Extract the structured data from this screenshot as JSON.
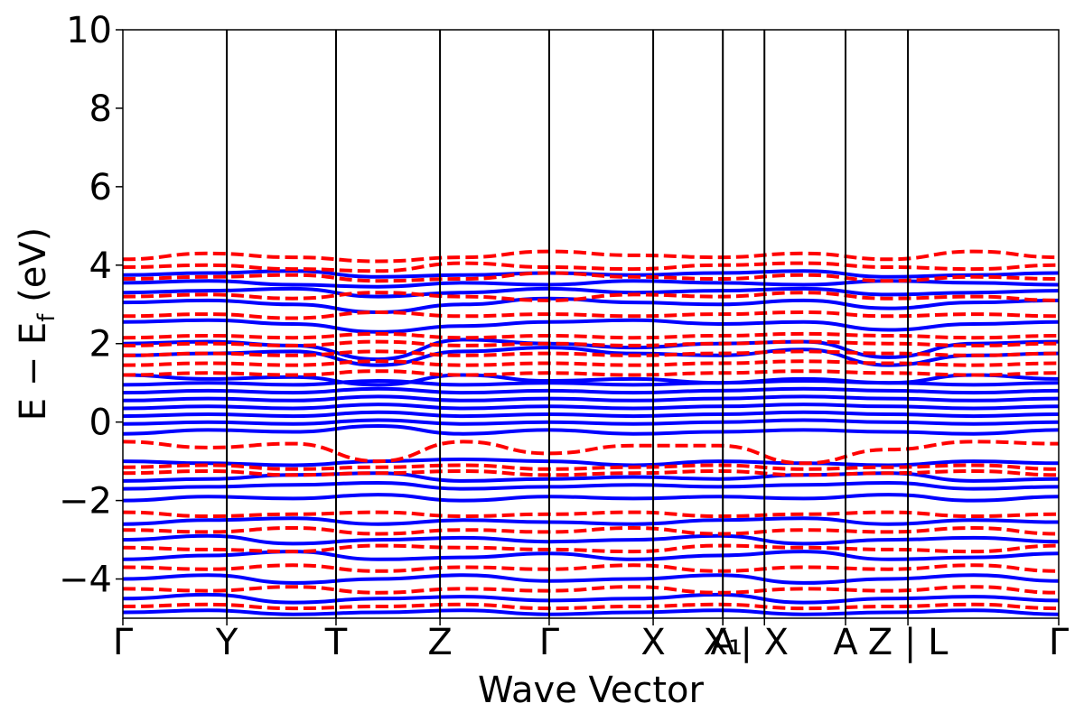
{
  "chart_data": {
    "type": "line",
    "xlabel": "Wave Vector",
    "ylabel": "E − E",
    "ylabel_sub": "f",
    "ylabel_unit": " (eV)",
    "ylim": [
      -5,
      10
    ],
    "yticks": [
      -4,
      -2,
      0,
      2,
      4,
      6,
      8,
      10
    ],
    "ytick_labels": [
      "−4",
      "−2",
      "0",
      "2",
      "4",
      "6",
      "8",
      "10"
    ],
    "xlim": [
      0,
      9.0
    ],
    "kpoints": [
      {
        "x": 0.0,
        "label": "Γ"
      },
      {
        "x": 1.0,
        "label": "Y"
      },
      {
        "x": 2.05,
        "label": "T"
      },
      {
        "x": 3.05,
        "label": "Z"
      },
      {
        "x": 4.1,
        "label": "Γ"
      },
      {
        "x": 5.1,
        "label": "X"
      },
      {
        "x": 5.77,
        "label": "A"
      },
      {
        "x": 5.77,
        "label": "X₁"
      },
      {
        "x": 6.17,
        "label": "| X"
      },
      {
        "x": 6.95,
        "label": "A"
      },
      {
        "x": 7.55,
        "label": "Z | L"
      },
      {
        "x": 9.0,
        "label": "Γ"
      }
    ],
    "series": [
      {
        "color": "#0000ff",
        "style": "solid",
        "bands": [
          [
            -0.3,
            -0.2,
            -0.25,
            -0.1,
            -0.3,
            -0.2,
            -0.3,
            -0.25,
            -0.2,
            -0.25,
            -0.3,
            -0.2
          ],
          [
            -0.05,
            0.0,
            -0.05,
            0.05,
            -0.05,
            0.0,
            -0.05,
            0.0,
            0.05,
            0.0,
            -0.05,
            0.0
          ],
          [
            0.15,
            0.2,
            0.15,
            0.25,
            0.15,
            0.2,
            0.15,
            0.2,
            0.25,
            0.2,
            0.15,
            0.2
          ],
          [
            0.35,
            0.4,
            0.35,
            0.45,
            0.35,
            0.4,
            0.35,
            0.4,
            0.45,
            0.4,
            0.35,
            0.4
          ],
          [
            0.55,
            0.6,
            0.55,
            0.65,
            0.55,
            0.6,
            0.55,
            0.6,
            0.65,
            0.6,
            0.55,
            0.6
          ],
          [
            0.75,
            0.8,
            0.75,
            0.85,
            0.75,
            0.8,
            0.75,
            0.8,
            0.85,
            0.8,
            0.75,
            0.8
          ],
          [
            0.95,
            1.0,
            0.95,
            1.05,
            0.95,
            1.0,
            0.95,
            1.0,
            1.05,
            1.0,
            0.95,
            1.0
          ],
          [
            1.2,
            1.1,
            1.15,
            0.95,
            1.2,
            1.05,
            1.1,
            1.0,
            1.1,
            1.0,
            1.2,
            1.1
          ],
          [
            1.7,
            1.75,
            1.8,
            1.45,
            1.8,
            1.9,
            1.75,
            1.7,
            1.85,
            1.45,
            1.7,
            1.75
          ],
          [
            2.0,
            2.05,
            1.95,
            1.6,
            2.1,
            2.0,
            1.9,
            2.0,
            2.05,
            1.65,
            2.0,
            2.05
          ],
          [
            2.55,
            2.6,
            2.5,
            2.3,
            2.45,
            2.55,
            2.6,
            2.5,
            2.55,
            2.35,
            2.5,
            2.55
          ],
          [
            3.05,
            3.1,
            3.0,
            2.8,
            3.0,
            3.15,
            3.05,
            3.0,
            3.1,
            2.9,
            3.05,
            3.1
          ],
          [
            3.3,
            3.35,
            3.4,
            3.2,
            3.3,
            3.4,
            3.3,
            3.35,
            3.4,
            3.25,
            3.3,
            3.35
          ],
          [
            3.55,
            3.6,
            3.5,
            3.45,
            3.55,
            3.5,
            3.6,
            3.55,
            3.5,
            3.6,
            3.55,
            3.5
          ],
          [
            3.75,
            3.8,
            3.85,
            3.7,
            3.75,
            3.8,
            3.75,
            3.8,
            3.85,
            3.7,
            3.75,
            3.8
          ],
          [
            -1.0,
            -1.05,
            -1.1,
            -1.0,
            -0.95,
            -1.0,
            -1.1,
            -1.0,
            -1.05,
            -1.1,
            -1.0,
            -1.05
          ],
          [
            -1.5,
            -1.45,
            -1.35,
            -1.3,
            -1.5,
            -1.45,
            -1.4,
            -1.45,
            -1.35,
            -1.3,
            -1.5,
            -1.45
          ],
          [
            -1.7,
            -1.65,
            -1.6,
            -1.55,
            -1.7,
            -1.65,
            -1.6,
            -1.65,
            -1.6,
            -1.55,
            -1.7,
            -1.65
          ],
          [
            -2.0,
            -1.9,
            -1.95,
            -1.85,
            -2.0,
            -1.9,
            -1.95,
            -1.9,
            -1.95,
            -1.85,
            -2.0,
            -1.9
          ],
          [
            -2.6,
            -2.5,
            -2.45,
            -2.6,
            -2.5,
            -2.55,
            -2.6,
            -2.5,
            -2.45,
            -2.6,
            -2.5,
            -2.55
          ],
          [
            -3.0,
            -2.9,
            -3.1,
            -3.0,
            -2.95,
            -3.05,
            -3.0,
            -2.9,
            -3.1,
            -3.0,
            -2.95,
            -3.05
          ],
          [
            -3.5,
            -3.4,
            -3.3,
            -3.5,
            -3.45,
            -3.35,
            -3.5,
            -3.4,
            -3.3,
            -3.5,
            -3.45,
            -3.35
          ],
          [
            -4.0,
            -3.9,
            -4.1,
            -4.0,
            -3.9,
            -4.05,
            -4.0,
            -3.9,
            -4.1,
            -4.0,
            -3.9,
            -4.05
          ],
          [
            -4.5,
            -4.4,
            -4.6,
            -4.5,
            -4.45,
            -4.55,
            -4.5,
            -4.4,
            -4.6,
            -4.5,
            -4.45,
            -4.55
          ],
          [
            -4.85,
            -4.8,
            -4.9,
            -4.85,
            -4.8,
            -4.9,
            -4.85,
            -4.8,
            -4.9,
            -4.85,
            -4.8,
            -4.9
          ]
        ]
      },
      {
        "color": "#ff0000",
        "style": "dashed",
        "bands": [
          [
            1.2,
            1.25,
            1.2,
            1.3,
            1.2,
            1.25,
            1.2,
            1.25,
            1.3,
            1.25,
            1.2,
            1.25
          ],
          [
            1.45,
            1.5,
            1.45,
            1.55,
            1.45,
            1.5,
            1.45,
            1.5,
            1.55,
            1.5,
            1.45,
            1.5
          ],
          [
            1.7,
            1.75,
            1.7,
            1.8,
            1.7,
            1.75,
            1.7,
            1.75,
            1.8,
            1.75,
            1.7,
            1.75
          ],
          [
            1.95,
            2.0,
            1.95,
            2.05,
            1.95,
            2.0,
            1.95,
            2.0,
            2.05,
            2.0,
            1.95,
            2.0
          ],
          [
            2.15,
            2.2,
            2.15,
            2.25,
            2.15,
            2.2,
            2.15,
            2.2,
            2.25,
            2.2,
            2.15,
            2.2
          ],
          [
            2.7,
            2.75,
            2.65,
            2.8,
            2.7,
            2.75,
            2.7,
            2.75,
            2.8,
            2.7,
            2.75,
            2.7
          ],
          [
            3.2,
            3.25,
            3.15,
            3.3,
            3.2,
            3.1,
            3.25,
            3.2,
            3.3,
            3.15,
            3.2,
            3.1
          ],
          [
            3.65,
            3.7,
            3.75,
            3.6,
            3.65,
            3.8,
            3.7,
            3.65,
            3.75,
            3.6,
            3.7,
            3.65
          ],
          [
            3.95,
            4.0,
            3.9,
            3.85,
            4.05,
            3.95,
            3.9,
            4.0,
            4.05,
            3.95,
            3.9,
            4.0
          ],
          [
            4.15,
            4.3,
            4.2,
            4.1,
            4.2,
            4.35,
            4.25,
            4.2,
            4.3,
            4.15,
            4.35,
            4.2
          ],
          [
            -0.5,
            -0.65,
            -0.55,
            -1.0,
            -0.5,
            -0.8,
            -0.6,
            -0.6,
            -1.05,
            -0.7,
            -0.5,
            -0.55
          ],
          [
            -1.15,
            -1.1,
            -1.2,
            -1.15,
            -1.1,
            -1.2,
            -1.15,
            -1.1,
            -1.2,
            -1.15,
            -1.1,
            -1.2
          ],
          [
            -1.3,
            -1.25,
            -1.35,
            -1.3,
            -1.25,
            -1.35,
            -1.3,
            -1.25,
            -1.35,
            -1.3,
            -1.25,
            -1.35
          ],
          [
            -2.3,
            -2.4,
            -2.35,
            -2.3,
            -2.4,
            -2.35,
            -2.3,
            -2.4,
            -2.35,
            -2.3,
            -2.4,
            -2.35
          ],
          [
            -2.75,
            -2.8,
            -2.7,
            -2.85,
            -2.75,
            -2.8,
            -2.7,
            -2.85,
            -2.75,
            -2.8,
            -2.7,
            -2.85
          ],
          [
            -3.2,
            -3.25,
            -3.3,
            -3.15,
            -3.2,
            -3.25,
            -3.3,
            -3.15,
            -3.2,
            -3.25,
            -3.3,
            -3.15
          ],
          [
            -3.7,
            -3.75,
            -3.65,
            -3.8,
            -3.7,
            -3.75,
            -3.65,
            -3.8,
            -3.7,
            -3.75,
            -3.65,
            -3.8
          ],
          [
            -4.25,
            -4.3,
            -4.2,
            -4.35,
            -4.25,
            -4.3,
            -4.2,
            -4.35,
            -4.25,
            -4.3,
            -4.2,
            -4.35
          ],
          [
            -4.7,
            -4.65,
            -4.75,
            -4.7,
            -4.65,
            -4.75,
            -4.7,
            -4.65,
            -4.75,
            -4.7,
            -4.65,
            -4.75
          ]
        ]
      }
    ]
  }
}
